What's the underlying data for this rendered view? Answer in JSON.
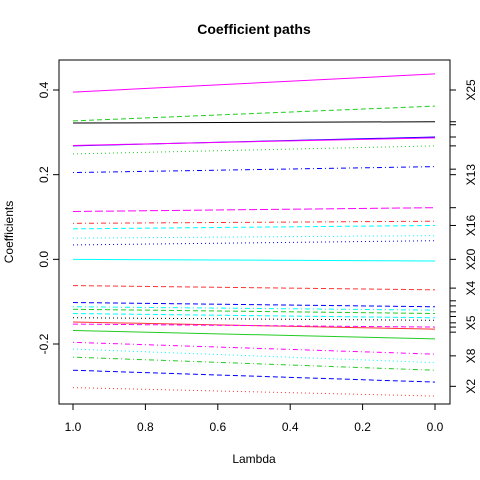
{
  "chart_data": {
    "type": "line",
    "title": "Coefficient paths",
    "xlabel": "Lambda",
    "ylabel": "Coefficients",
    "x": [
      1.0,
      0.0
    ],
    "xlim": [
      1.0,
      0.0
    ],
    "ylim": [
      -0.34,
      0.46
    ],
    "x_ticks": [
      "1.0",
      "0.8",
      "0.6",
      "0.4",
      "0.2",
      "0.0"
    ],
    "x_tick_values": [
      1.0,
      0.8,
      0.6,
      0.4,
      0.2,
      0.0
    ],
    "y_ticks": [
      "-0.2",
      "0.0",
      "0.2",
      "0.4"
    ],
    "y_tick_values": [
      -0.2,
      0.0,
      0.2,
      0.4
    ],
    "grid": false,
    "right_labels": [
      {
        "label": "X25",
        "y": 0.4
      },
      {
        "label": "X13",
        "y": 0.2
      },
      {
        "label": "X16",
        "y": 0.08
      },
      {
        "label": "X20",
        "y": 0.0
      },
      {
        "label": "X4",
        "y": -0.068
      },
      {
        "label": "X5",
        "y": -0.15
      },
      {
        "label": "X8",
        "y": -0.228
      },
      {
        "label": "X2",
        "y": -0.3
      }
    ],
    "right_ticks_only": [
      0.325,
      0.318,
      0.289,
      0.268,
      0.213,
      0.122,
      -0.098,
      -0.11,
      -0.124,
      -0.135,
      -0.16,
      -0.172
    ],
    "series": [
      {
        "values": [
          0.395,
          0.438
        ],
        "color": "#FF00FF",
        "dash": "solid"
      },
      {
        "values": [
          0.327,
          0.362
        ],
        "color": "#22CC22",
        "dash": "dashed"
      },
      {
        "values": [
          0.322,
          0.325
        ],
        "color": "#000000",
        "dash": "solid"
      },
      {
        "values": [
          0.268,
          0.289
        ],
        "color": "#0000FF",
        "dash": "solid"
      },
      {
        "values": [
          0.269,
          0.287
        ],
        "color": "#FF00FF",
        "dash": "solid"
      },
      {
        "values": [
          0.249,
          0.268
        ],
        "color": "#22CC22",
        "dash": "dotted"
      },
      {
        "values": [
          0.205,
          0.219
        ],
        "color": "#0000FF",
        "dash": "dashdot"
      },
      {
        "values": [
          0.113,
          0.122
        ],
        "color": "#FF00FF",
        "dash": "longdash"
      },
      {
        "values": [
          0.085,
          0.09
        ],
        "color": "#FF3333",
        "dash": "dashdot"
      },
      {
        "values": [
          0.072,
          0.08
        ],
        "color": "#00FFFF",
        "dash": "dashed"
      },
      {
        "values": [
          0.05,
          0.056
        ],
        "color": "#00FFFF",
        "dash": "dotted"
      },
      {
        "values": [
          0.034,
          0.044
        ],
        "color": "#0000FF",
        "dash": "dotted"
      },
      {
        "values": [
          0.0,
          -0.004
        ],
        "color": "#00FFFF",
        "dash": "solid"
      },
      {
        "values": [
          -0.062,
          -0.072
        ],
        "color": "#FF3333",
        "dash": "dashed"
      },
      {
        "values": [
          -0.102,
          -0.112
        ],
        "color": "#0000FF",
        "dash": "dashed"
      },
      {
        "values": [
          -0.112,
          -0.12
        ],
        "color": "#00FFFF",
        "dash": "dashdot"
      },
      {
        "values": [
          -0.118,
          -0.128
        ],
        "color": "#22CC22",
        "dash": "dashed"
      },
      {
        "values": [
          -0.128,
          -0.138
        ],
        "color": "#00FFFF",
        "dash": "dashed"
      },
      {
        "values": [
          -0.138,
          -0.144
        ],
        "color": "#000000",
        "dash": "dotted"
      },
      {
        "values": [
          -0.148,
          -0.165
        ],
        "color": "#FF3333",
        "dash": "solid"
      },
      {
        "values": [
          -0.153,
          -0.16
        ],
        "color": "#FF00FF",
        "dash": "dashed"
      },
      {
        "values": [
          -0.168,
          -0.188
        ],
        "color": "#22CC22",
        "dash": "solid"
      },
      {
        "values": [
          -0.196,
          -0.224
        ],
        "color": "#FF00FF",
        "dash": "dashdot"
      },
      {
        "values": [
          -0.212,
          -0.244
        ],
        "color": "#00FFFF",
        "dash": "dotted"
      },
      {
        "values": [
          -0.231,
          -0.262
        ],
        "color": "#22CC22",
        "dash": "dashdot"
      },
      {
        "values": [
          -0.262,
          -0.29
        ],
        "color": "#0000FF",
        "dash": "dashed"
      },
      {
        "values": [
          -0.303,
          -0.323
        ],
        "color": "#FF3333",
        "dash": "dotted"
      }
    ]
  }
}
